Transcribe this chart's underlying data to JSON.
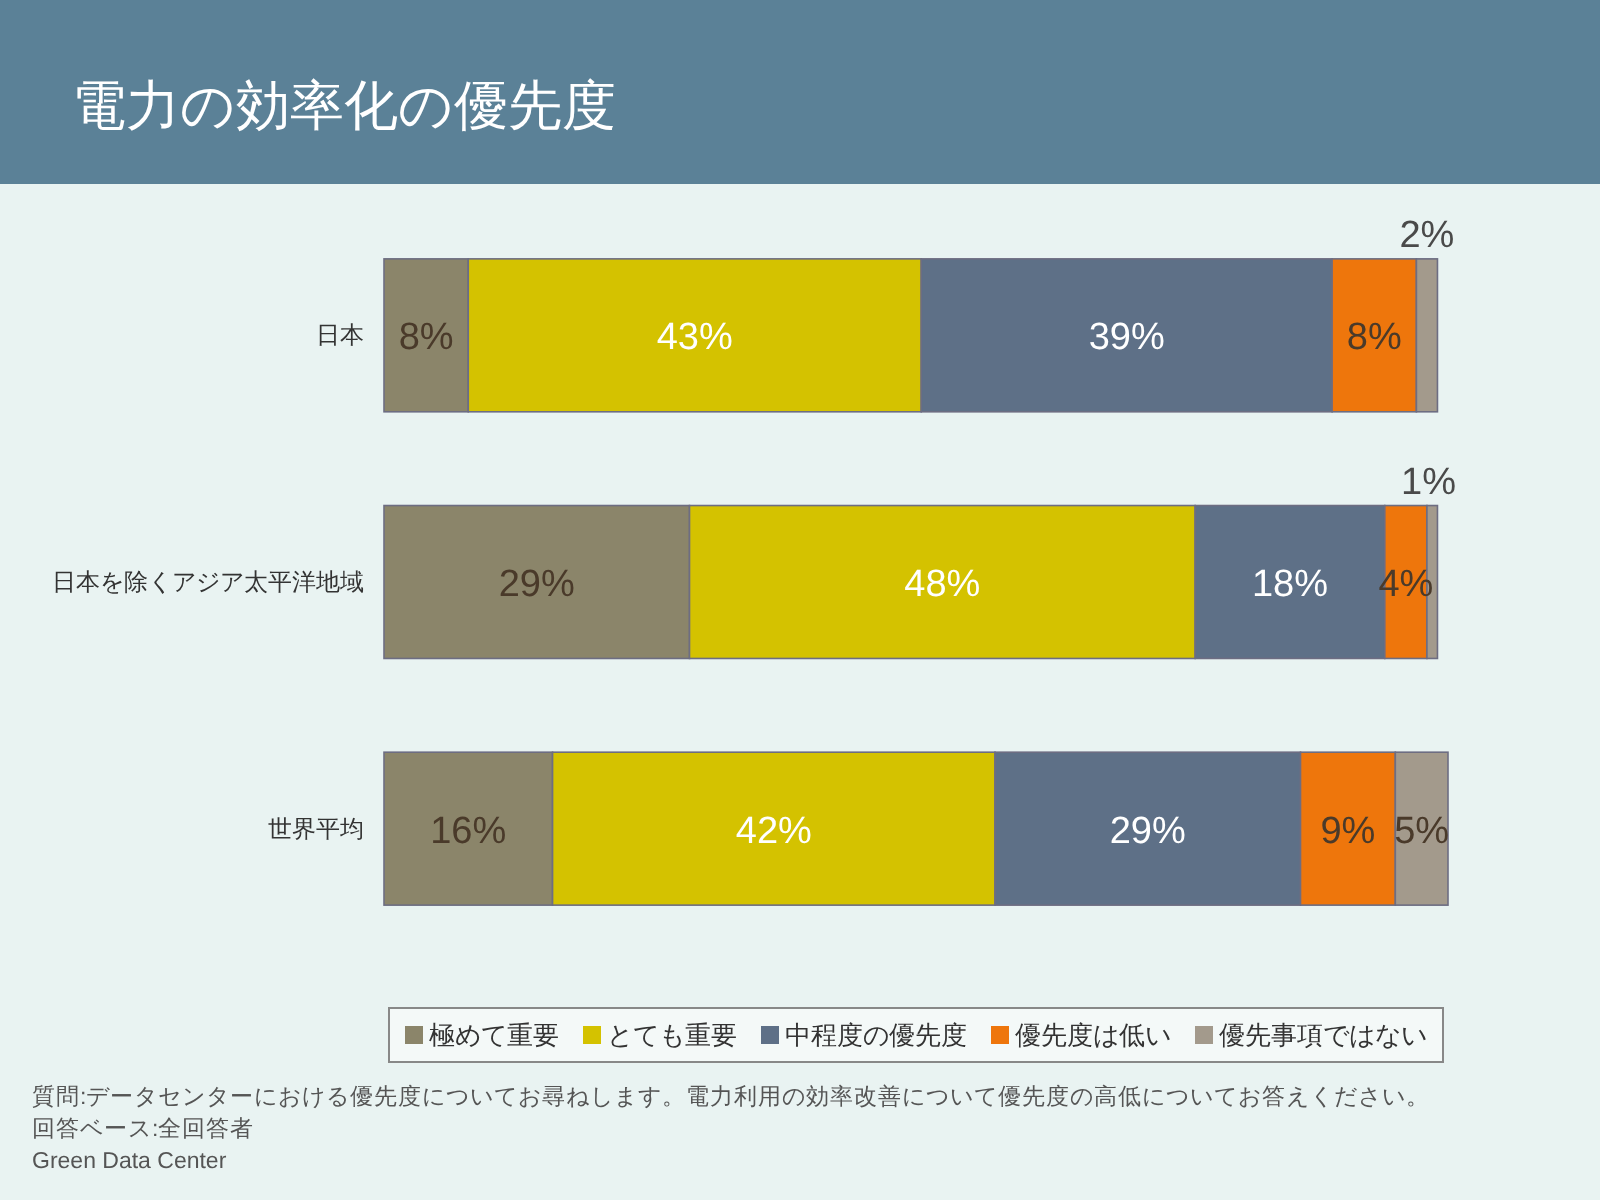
{
  "chart_data": {
    "type": "bar",
    "orientation": "horizontal",
    "stacked": true,
    "title": "電力の効率化の優先度",
    "categories": [
      "日本",
      "日本を除くアジア太平洋地域",
      "世界平均"
    ],
    "xlim": [
      0,
      101
    ],
    "tick_labels": "y",
    "legend": "bottom",
    "series": [
      {
        "name": "極めて重要",
        "color": "#8b856a",
        "values": [
          8,
          29,
          16
        ],
        "value_labels": [
          "8%",
          "29%",
          "16%"
        ]
      },
      {
        "name": "とても重要",
        "color": "#d4c200",
        "values": [
          43,
          48,
          42
        ],
        "value_labels": [
          "43%",
          "48%",
          "42%"
        ]
      },
      {
        "name": "中程度の優先度",
        "color": "#5e7087",
        "values": [
          39,
          18,
          29
        ],
        "value_labels": [
          "39%",
          "18%",
          "29%"
        ]
      },
      {
        "name": "優先度は低い",
        "color": "#ee760c",
        "values": [
          8,
          4,
          9
        ],
        "value_labels": [
          "8%",
          "4%",
          "9%"
        ]
      },
      {
        "name": "優先事項ではない",
        "color": "#a39a8c",
        "values": [
          2,
          1,
          5
        ],
        "value_labels": [
          "2%",
          "1%",
          "5%"
        ]
      }
    ],
    "annotations": [
      "質問:データセンターにおける優先度についてお尋ねします。電力利用の効率改善について優先度の高低についてお答えください。",
      "回答ベース:全回答者",
      "Green Data Center"
    ]
  }
}
